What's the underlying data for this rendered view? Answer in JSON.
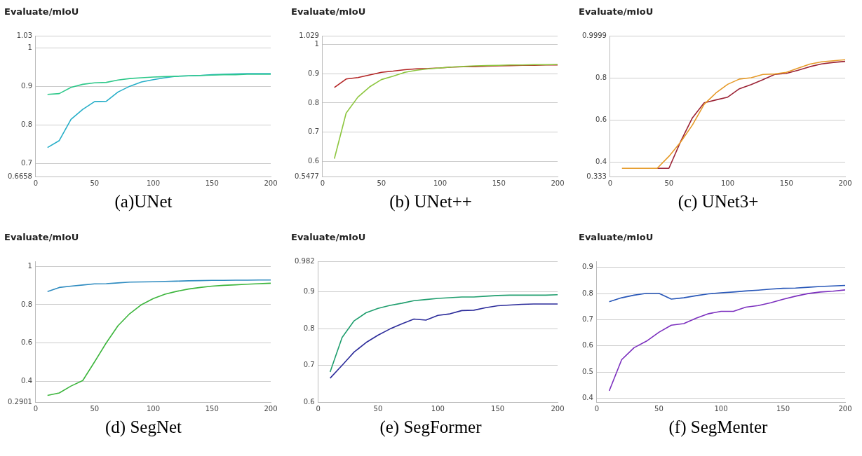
{
  "chart_data": [
    {
      "type": "line",
      "title": "Evaluate/mIoU",
      "annotations": [
        "(a)UNet"
      ],
      "x": [
        10,
        20,
        30,
        40,
        50,
        60,
        70,
        80,
        90,
        100,
        110,
        120,
        130,
        140,
        150,
        160,
        170,
        180,
        190,
        200
      ],
      "xlim": [
        0,
        200
      ],
      "xticks": [
        0,
        50,
        100,
        150,
        200
      ],
      "ylim": [
        0.6658,
        1.03
      ],
      "yticks": [
        0.6658,
        0.7,
        0.8,
        0.9,
        1,
        1.03
      ],
      "grid": "y",
      "legend": false,
      "marker": "none",
      "line_style": "solid",
      "series": [
        {
          "color": "#2ec88a",
          "values": [
            0.879,
            0.881,
            0.897,
            0.905,
            0.909,
            0.91,
            0.916,
            0.92,
            0.922,
            0.924,
            0.925,
            0.926,
            0.927,
            0.928,
            0.929,
            0.93,
            0.93,
            0.931,
            0.931,
            0.931
          ]
        },
        {
          "color": "#26aec8",
          "values": [
            0.741,
            0.759,
            0.814,
            0.84,
            0.86,
            0.861,
            0.885,
            0.9,
            0.911,
            0.917,
            0.922,
            0.926,
            0.927,
            0.928,
            0.93,
            0.931,
            0.932,
            0.933,
            0.933,
            0.933
          ]
        }
      ]
    },
    {
      "type": "line",
      "title": "Evaluate/mIoU",
      "annotations": [
        "(b) UNet++"
      ],
      "x": [
        10,
        20,
        30,
        40,
        50,
        60,
        70,
        80,
        90,
        100,
        110,
        120,
        130,
        140,
        150,
        160,
        170,
        180,
        190,
        200
      ],
      "xlim": [
        0,
        200
      ],
      "xticks": [
        0,
        50,
        100,
        150,
        200
      ],
      "ylim": [
        0.5477,
        1.029
      ],
      "yticks": [
        0.5477,
        0.6,
        0.7,
        0.8,
        0.9,
        1,
        1.029
      ],
      "grid": "y",
      "legend": false,
      "marker": "none",
      "line_style": "solid",
      "series": [
        {
          "color": "#8dc63f",
          "values": [
            0.609,
            0.765,
            0.82,
            0.855,
            0.88,
            0.892,
            0.905,
            0.912,
            0.917,
            0.92,
            0.923,
            0.925,
            0.927,
            0.928,
            0.929,
            0.93,
            0.93,
            0.931,
            0.931,
            0.932
          ]
        },
        {
          "color": "#b22222",
          "values": [
            0.853,
            0.882,
            0.887,
            0.896,
            0.905,
            0.909,
            0.914,
            0.917,
            0.918,
            0.92,
            0.923,
            0.924,
            0.924,
            0.926,
            0.927,
            0.928,
            0.929,
            0.929,
            0.93,
            0.93
          ]
        }
      ]
    },
    {
      "type": "line",
      "title": "Evaluate/mIoU",
      "annotations": [
        "(c) UNet3+"
      ],
      "x": [
        10,
        20,
        30,
        40,
        50,
        60,
        70,
        80,
        90,
        100,
        110,
        120,
        130,
        140,
        150,
        160,
        170,
        180,
        190,
        200
      ],
      "xlim": [
        0,
        200
      ],
      "xticks": [
        0,
        50,
        100,
        150,
        200
      ],
      "ylim": [
        0.333,
        0.9999
      ],
      "yticks": [
        0.333,
        0.4,
        0.6,
        0.8,
        0.9999
      ],
      "grid": "y",
      "legend": false,
      "marker": "none",
      "line_style": "solid",
      "series": [
        {
          "color": "#e69a28",
          "values": [
            0.372,
            0.372,
            0.372,
            0.372,
            0.429,
            0.497,
            0.578,
            0.676,
            0.73,
            0.771,
            0.796,
            0.802,
            0.818,
            0.82,
            0.828,
            0.848,
            0.867,
            0.878,
            0.883,
            0.888
          ]
        },
        {
          "color": "#9b2335",
          "values": [
            null,
            null,
            null,
            0.372,
            0.372,
            0.5,
            0.612,
            0.683,
            0.697,
            0.71,
            0.75,
            0.77,
            0.793,
            0.818,
            0.823,
            0.838,
            0.855,
            0.868,
            0.875,
            0.88
          ]
        }
      ]
    },
    {
      "type": "line",
      "title": "Evaluate/mIoU",
      "annotations": [
        "(d) SegNet"
      ],
      "x": [
        10,
        20,
        30,
        40,
        50,
        60,
        70,
        80,
        90,
        100,
        110,
        120,
        130,
        140,
        150,
        160,
        170,
        180,
        190,
        200
      ],
      "xlim": [
        0,
        200
      ],
      "xticks": [
        0,
        50,
        100,
        150,
        200
      ],
      "ylim": [
        0.2901,
        1.025
      ],
      "yticks": [
        0.2901,
        0.4,
        0.6,
        0.8,
        1
      ],
      "grid": "y",
      "legend": false,
      "marker": "none",
      "line_style": "solid",
      "series": [
        {
          "color": "#2e8bc0",
          "values": [
            0.869,
            0.89,
            0.897,
            0.903,
            0.909,
            0.91,
            0.914,
            0.918,
            0.919,
            0.92,
            0.922,
            0.923,
            0.925,
            0.926,
            0.927,
            0.927,
            0.928,
            0.928,
            0.929,
            0.929
          ]
        },
        {
          "color": "#3cb53c",
          "values": [
            0.325,
            0.338,
            0.374,
            0.403,
            0.5,
            0.6,
            0.69,
            0.753,
            0.8,
            0.832,
            0.855,
            0.87,
            0.882,
            0.89,
            0.897,
            0.901,
            0.904,
            0.907,
            0.91,
            0.912
          ]
        }
      ]
    },
    {
      "type": "line",
      "title": "Evaluate/mIoU",
      "annotations": [
        "(e) SegFormer"
      ],
      "x": [
        10,
        20,
        30,
        40,
        50,
        60,
        70,
        80,
        90,
        100,
        110,
        120,
        130,
        140,
        150,
        160,
        170,
        180,
        190,
        200
      ],
      "xlim": [
        0,
        200
      ],
      "xticks": [
        0,
        50,
        100,
        150,
        200
      ],
      "ylim": [
        0.6,
        0.982
      ],
      "yticks": [
        0.6,
        0.7,
        0.8,
        0.9,
        0.982
      ],
      "grid": "y",
      "legend": false,
      "marker": "none",
      "line_style": "solid",
      "series": [
        {
          "color": "#1f9e6e",
          "values": [
            0.682,
            0.776,
            0.821,
            0.843,
            0.855,
            0.863,
            0.869,
            0.876,
            0.879,
            0.882,
            0.884,
            0.886,
            0.886,
            0.888,
            0.89,
            0.891,
            0.891,
            0.891,
            0.891,
            0.892
          ]
        },
        {
          "color": "#2b2b9a",
          "values": [
            0.665,
            0.7,
            0.736,
            0.762,
            0.782,
            0.799,
            0.813,
            0.826,
            0.823,
            0.836,
            0.84,
            0.849,
            0.85,
            0.857,
            0.862,
            0.864,
            0.866,
            0.867,
            0.867,
            0.867
          ]
        }
      ]
    },
    {
      "type": "line",
      "title": "Evaluate/mIoU",
      "annotations": [
        "(f) SegMenter"
      ],
      "x": [
        10,
        20,
        30,
        40,
        50,
        60,
        70,
        80,
        90,
        100,
        110,
        120,
        130,
        140,
        150,
        160,
        170,
        180,
        190,
        200
      ],
      "xlim": [
        0,
        200
      ],
      "xticks": [
        0,
        50,
        100,
        150,
        200
      ],
      "ylim": [
        0.385,
        0.922
      ],
      "yticks": [
        0.4,
        0.5,
        0.6,
        0.7,
        0.8,
        0.9
      ],
      "grid": "y",
      "legend": false,
      "marker": "none",
      "line_style": "solid",
      "series": [
        {
          "color": "#2756b8",
          "values": [
            0.769,
            0.784,
            0.794,
            0.801,
            0.801,
            0.779,
            0.784,
            0.792,
            0.799,
            0.803,
            0.806,
            0.81,
            0.813,
            0.817,
            0.82,
            0.821,
            0.824,
            0.827,
            0.829,
            0.831
          ]
        },
        {
          "color": "#7b2fbe",
          "values": [
            0.428,
            0.547,
            0.593,
            0.618,
            0.652,
            0.679,
            0.685,
            0.706,
            0.723,
            0.732,
            0.732,
            0.748,
            0.754,
            0.765,
            0.778,
            0.79,
            0.8,
            0.806,
            0.809,
            0.814
          ]
        }
      ]
    }
  ]
}
